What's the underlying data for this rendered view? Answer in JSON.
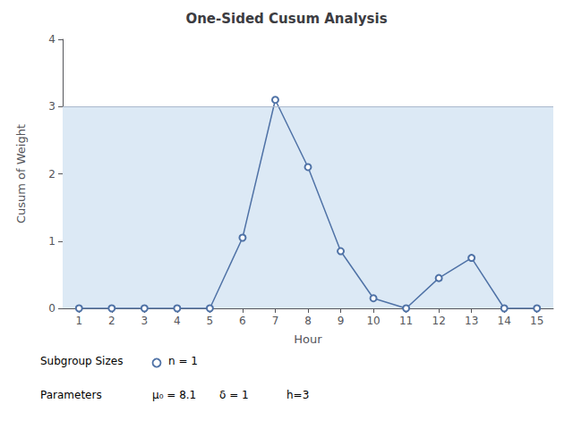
{
  "chart_data": {
    "type": "line",
    "title": "One-Sided Cusum Analysis",
    "xlabel": "Hour",
    "ylabel": "Cusum of Weight",
    "x": [
      1,
      2,
      3,
      4,
      5,
      6,
      7,
      8,
      9,
      10,
      11,
      12,
      13,
      14,
      15
    ],
    "values": [
      0.0,
      0.0,
      0.0,
      0.0,
      0.0,
      1.05,
      3.1,
      2.1,
      0.85,
      0.15,
      0.0,
      0.45,
      0.75,
      0.0,
      0.0
    ],
    "color": "#4f72a6",
    "marker": "open_circle",
    "xlim": [
      0.5,
      15.5
    ],
    "xticks": [
      1,
      2,
      3,
      4,
      5,
      6,
      7,
      8,
      9,
      10,
      11,
      12,
      13,
      14,
      15
    ],
    "ylim": [
      0,
      4.0
    ],
    "yticks": [
      0,
      1,
      2,
      3,
      4
    ],
    "grid": false,
    "decision_band": {
      "from": 0,
      "to": 3,
      "color": "#dce9f5"
    },
    "decision_line": {
      "value": 3,
      "color": "#aab8cc"
    },
    "annotations": [
      {
        "label": "Subgroup Sizes",
        "items": [
          {
            "marker": "open_circle",
            "text": "n = 1"
          }
        ]
      },
      {
        "label": "Parameters",
        "items": [
          {
            "text": "μ₀ = 8.1"
          },
          {
            "text": "δ = 1"
          },
          {
            "text": "h=3"
          }
        ]
      }
    ]
  }
}
